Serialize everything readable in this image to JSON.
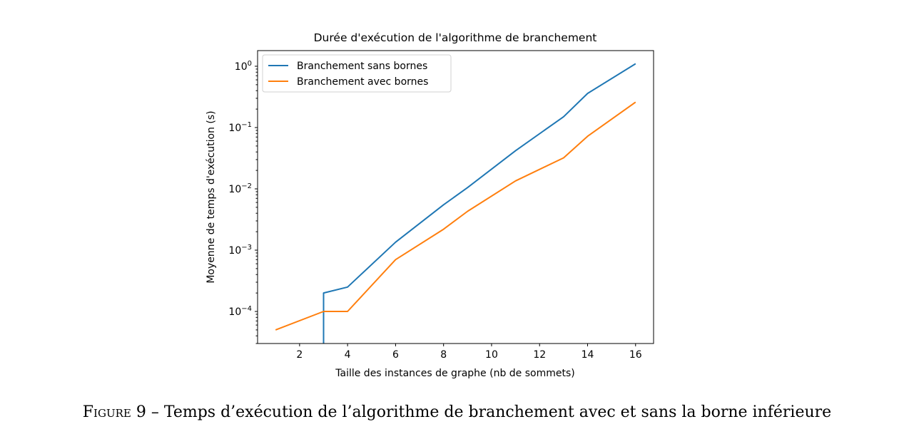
{
  "chart_data": {
    "type": "line",
    "title": "Durée d'exécution de l'algorithme de branchement",
    "xlabel": "Taille des instances de graphe (nb de sommets)",
    "ylabel": "Moyenne de temps d'exécution (s)",
    "xlim": [
      0.25,
      16.75
    ],
    "ylim": [
      3e-05,
      1.8
    ],
    "yscale": "log",
    "xticks": [
      2,
      4,
      6,
      8,
      10,
      12,
      14,
      16
    ],
    "yticks": [
      {
        "value": 0.0001,
        "base": "10",
        "exp": "−4"
      },
      {
        "value": 0.001,
        "base": "10",
        "exp": "−3"
      },
      {
        "value": 0.01,
        "base": "10",
        "exp": "−2"
      },
      {
        "value": 0.1,
        "base": "10",
        "exp": "−1"
      },
      {
        "value": 1,
        "base": "10",
        "exp": "0"
      }
    ],
    "legend_position": "upper-left",
    "grid": false,
    "series": [
      {
        "name": "Branchement sans bornes",
        "color": "#1f77b4",
        "x": [
          3,
          3,
          4,
          6,
          8,
          9,
          11,
          13,
          14,
          16
        ],
        "y": [
          3e-05,
          0.0002,
          0.00025,
          0.00135,
          0.0055,
          0.0105,
          0.042,
          0.15,
          0.36,
          1.1
        ]
      },
      {
        "name": "Branchement avec bornes",
        "color": "#ff7f0e",
        "x": [
          1,
          3,
          4,
          6,
          8,
          9,
          11,
          13,
          14,
          16
        ],
        "y": [
          5e-05,
          0.0001,
          0.0001,
          0.0007,
          0.0022,
          0.0043,
          0.0135,
          0.032,
          0.072,
          0.26
        ]
      }
    ]
  },
  "caption": {
    "label": "Figure 9",
    "separator": " – ",
    "text": "Temps d’exécution de l’algorithme de branchement avec et sans la borne inférieure"
  }
}
